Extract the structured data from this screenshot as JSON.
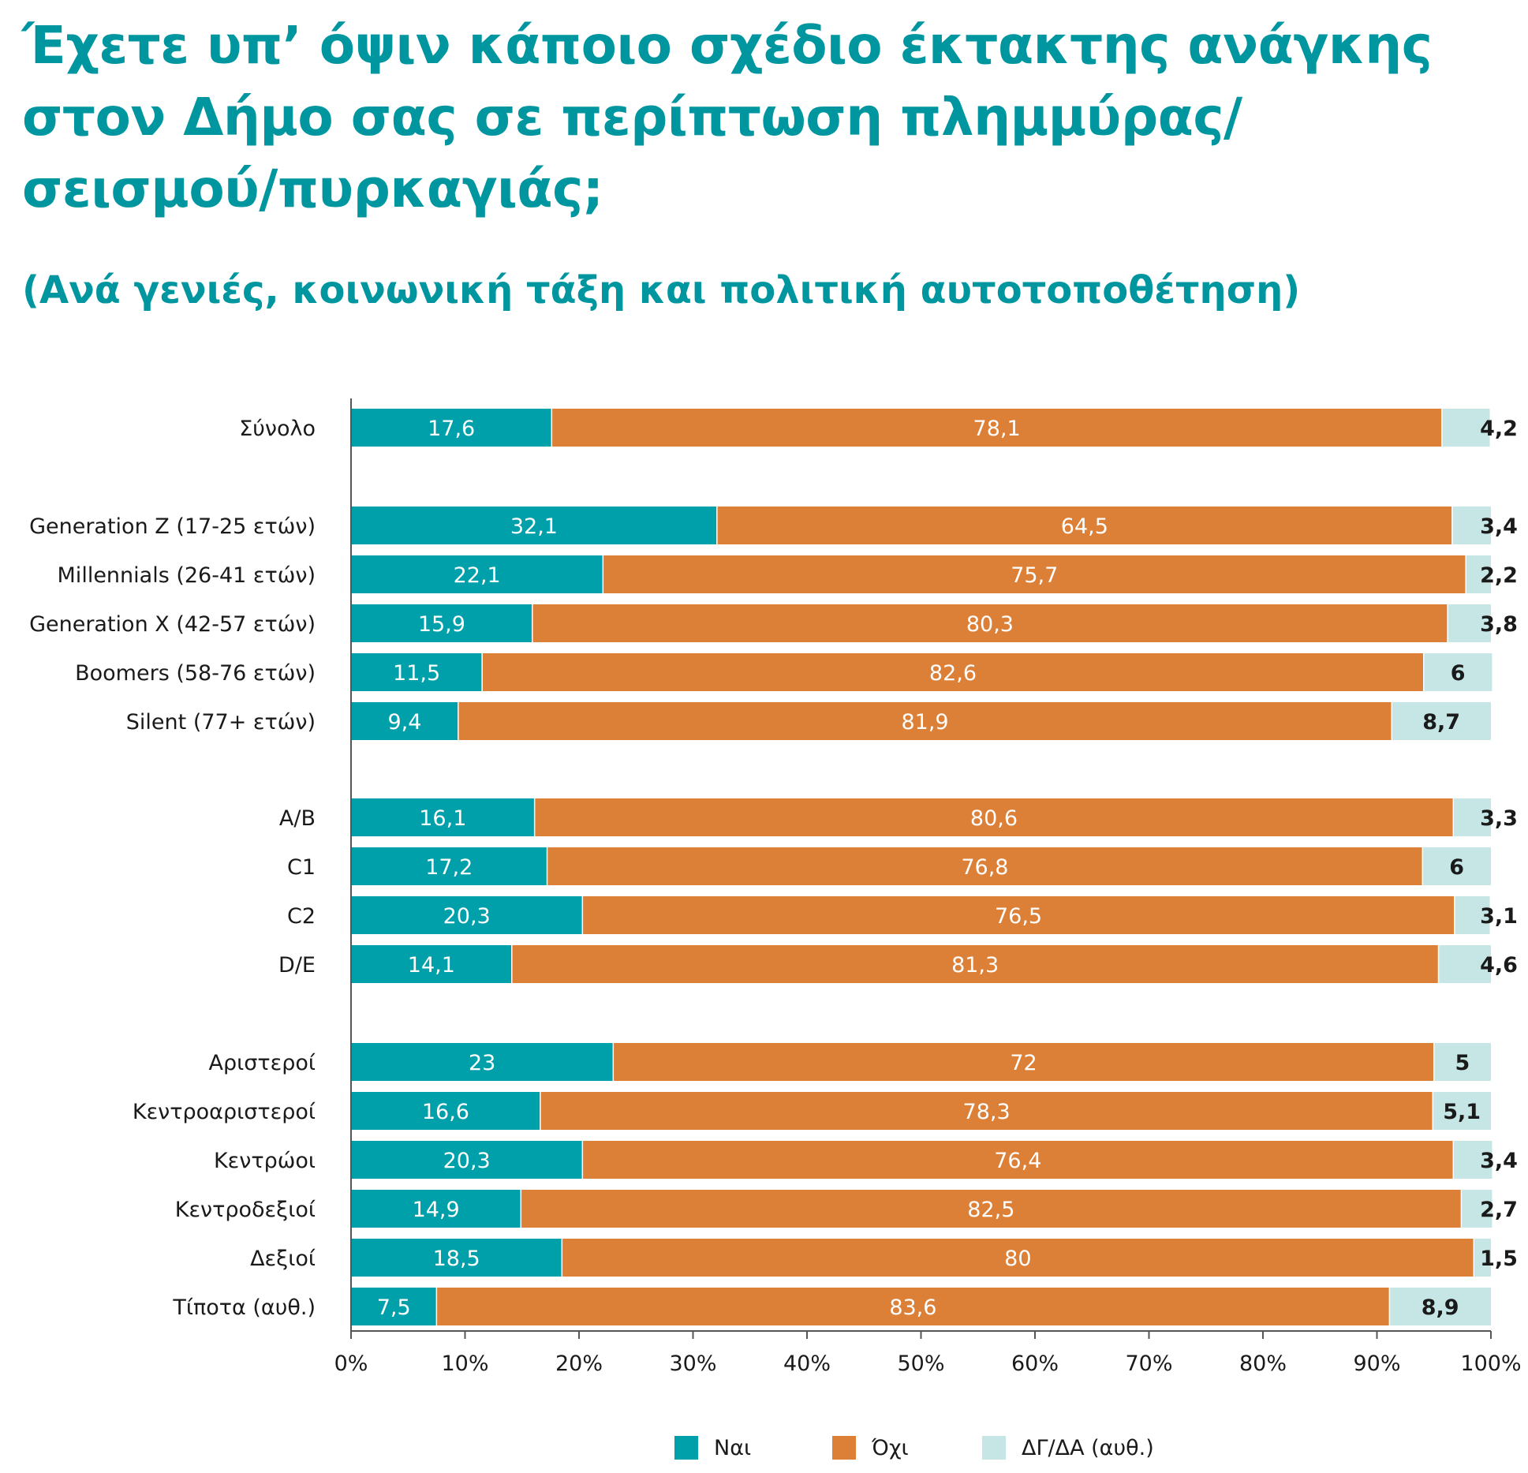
{
  "title": "Έχετε υπ’ όψιν κάποιο σχέδιο έκτακτης ανάγκης στον Δήμο σας σε περίπτωση πλημμύρας/ σεισμού/πυρκαγιάς;",
  "subtitle": "(Ανά γενιές, κοινωνική τάξη και πολιτική αυτοτοποθέτηση)",
  "chart_data": {
    "type": "bar",
    "orientation": "horizontal",
    "stacked": true,
    "categories": [
      "Σύνολο",
      "Generation Z (17-25 ετών)",
      "Millennials (26-41 ετών)",
      "Generation X (42-57 ετών)",
      "Boomers (58-76 ετών)",
      "Silent (77+ ετών)",
      "A/B",
      "C1",
      "C2",
      "D/E",
      "Αριστεροί",
      "Κεντροαριστεροί",
      "Κεντρώοι",
      "Κεντροδεξιοί",
      "Δεξιοί",
      "Τίποτα (αυθ.)"
    ],
    "series": [
      {
        "name": "Ναι",
        "color": "#00a0aa",
        "values": [
          17.6,
          32.1,
          22.1,
          15.9,
          11.5,
          9.4,
          16.1,
          17.2,
          20.3,
          14.1,
          23,
          16.6,
          20.3,
          14.9,
          18.5,
          7.5
        ],
        "labels": [
          "17,6",
          "32,1",
          "22,1",
          "15,9",
          "11,5",
          "9,4",
          "16,1",
          "17,2",
          "20,3",
          "14,1",
          "23",
          "16,6",
          "20,3",
          "14,9",
          "18,5",
          "7,5"
        ]
      },
      {
        "name": "Όχι",
        "color": "#dc8038",
        "values": [
          78.1,
          64.5,
          75.7,
          80.3,
          82.6,
          81.9,
          80.6,
          76.8,
          76.5,
          81.3,
          72,
          78.3,
          76.4,
          82.5,
          80,
          83.6
        ],
        "labels": [
          "78,1",
          "64,5",
          "75,7",
          "80,3",
          "82,6",
          "81,9",
          "80,6",
          "76,8",
          "76,5",
          "81,3",
          "72",
          "78,3",
          "76,4",
          "82,5",
          "80",
          "83,6"
        ]
      },
      {
        "name": "ΔΓ/ΔΑ (αυθ.)",
        "color": "#c6e6e6",
        "values": [
          4.2,
          3.4,
          2.2,
          3.8,
          6,
          8.7,
          3.3,
          6,
          3.1,
          4.6,
          5,
          5.1,
          3.4,
          2.7,
          1.5,
          8.9
        ],
        "labels": [
          "4,2",
          "3,4",
          "2,2",
          "3,8",
          "6",
          "8,7",
          "3,3",
          "6",
          "3,1",
          "4,6",
          "5",
          "5,1",
          "3,4",
          "2,7",
          "1,5",
          "8,9"
        ]
      }
    ],
    "xlim": [
      0,
      100
    ],
    "x_ticks": [
      "0%",
      "10%",
      "20%",
      "30%",
      "40%",
      "50%",
      "60%",
      "70%",
      "80%",
      "90%",
      "100%"
    ],
    "legend_position": "bottom",
    "grid": false
  }
}
